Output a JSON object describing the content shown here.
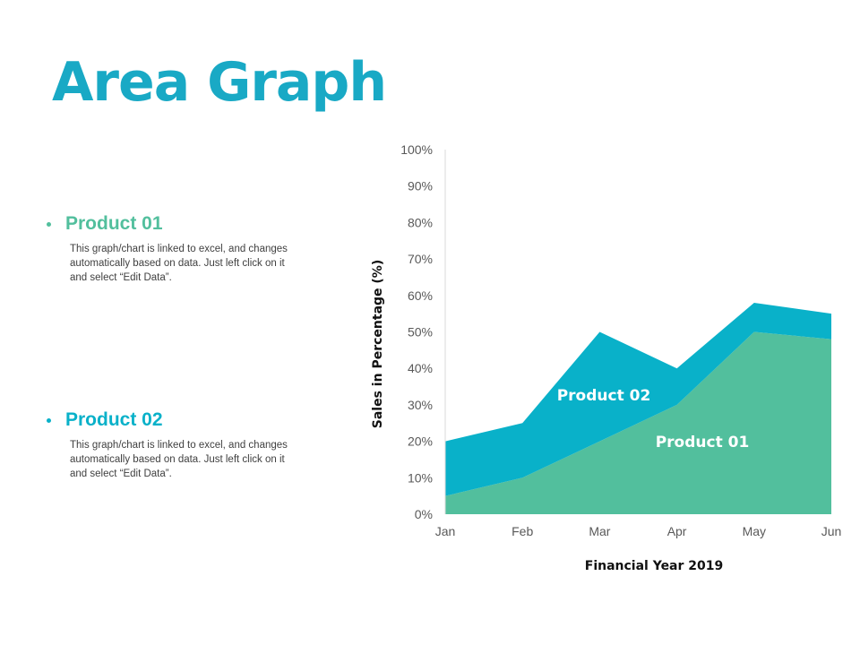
{
  "page": {
    "title": "Area Graph"
  },
  "legend": [
    {
      "name": "Product 01",
      "description": "This graph/chart is linked to excel, and changes automatically based on data. Just left click on it and select “Edit Data”.",
      "color": "#52bf9d"
    },
    {
      "name": "Product 02",
      "description": "This graph/chart is linked to excel, and changes automatically based on data. Just left click on it and select “Edit Data”.",
      "color": "#09b1c9"
    }
  ],
  "chart_data": {
    "type": "area",
    "stacked": true,
    "categories": [
      "Jan",
      "Feb",
      "Mar",
      "Apr",
      "May",
      "Jun"
    ],
    "series": [
      {
        "name": "Product 01",
        "values": [
          5,
          10,
          20,
          30,
          50,
          48
        ],
        "color": "#52bf9d",
        "label": "Product 01"
      },
      {
        "name": "Product 02",
        "values": [
          15,
          15,
          30,
          10,
          8,
          7
        ],
        "color": "#09b1c9",
        "label": "Product 02"
      }
    ],
    "title": "",
    "xlabel": "Financial Year 2019",
    "ylabel": "Sales in Percentage (%)",
    "ylim": [
      0,
      100
    ],
    "yticks": [
      "0%",
      "10%",
      "20%",
      "30%",
      "40%",
      "50%",
      "60%",
      "70%",
      "80%",
      "90%",
      "100%"
    ],
    "grid": false
  }
}
